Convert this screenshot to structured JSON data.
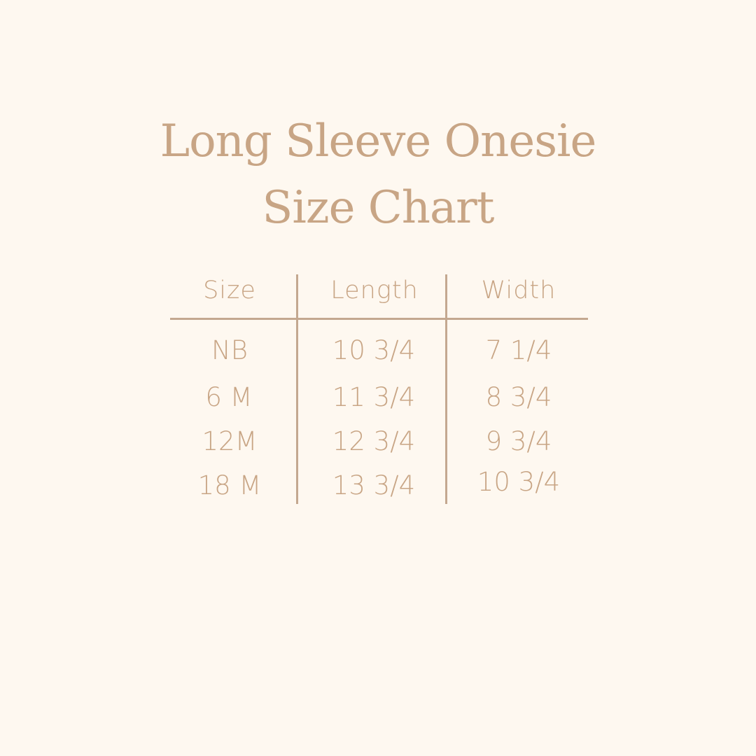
{
  "title": {
    "line1": "Long Sleeve Onesie",
    "line2": "Size Chart"
  },
  "colors": {
    "background": "#fef8f0",
    "text": "#c8a585",
    "lines": "#c4a890"
  },
  "table": {
    "headers": [
      "Size",
      "Length",
      "Width"
    ],
    "rows": [
      [
        "NB",
        "10 3/4",
        "7 1/4"
      ],
      [
        "6 M",
        "11 3/4",
        "8 3/4"
      ],
      [
        "12M",
        "12 3/4",
        "9 3/4"
      ],
      [
        "18 M",
        "13 3/4",
        "10 3/4"
      ]
    ]
  }
}
